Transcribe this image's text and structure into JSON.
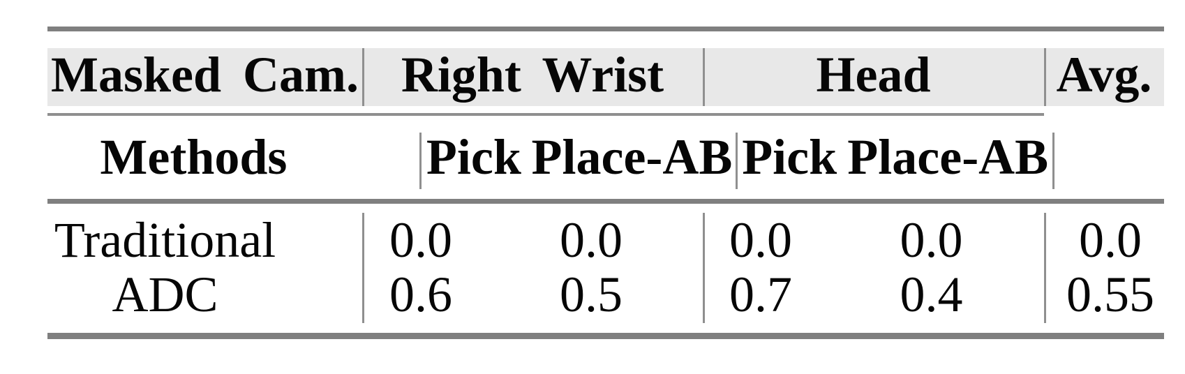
{
  "table": {
    "top_header": {
      "masked_cam": "Masked Cam.",
      "right_wrist": "Right Wrist",
      "head": "Head",
      "avg": "Avg."
    },
    "sub_header": {
      "methods": "Methods",
      "cols": [
        "Pick",
        "Place-AB",
        "Pick",
        "Place-AB"
      ]
    },
    "rows": [
      {
        "method": "Traditional",
        "values": [
          "0.0",
          "0.0",
          "0.0",
          "0.0",
          "0.0"
        ]
      },
      {
        "method": "ADC",
        "values": [
          "0.6",
          "0.5",
          "0.7",
          "0.4",
          "0.55"
        ]
      }
    ]
  },
  "colors": {
    "thick_rule": "#7f7f7f",
    "thin_rule": "#8f8f8f",
    "vertical_line": "#8f8f8f",
    "header_band_bg": "#e8e8e8",
    "text": "#060606",
    "background": "#ffffff"
  },
  "chart_data": {
    "type": "table",
    "title": "",
    "column_groups": [
      "Masked Cam.",
      "Right Wrist",
      "Right Wrist",
      "Head",
      "Head",
      "Avg."
    ],
    "columns": [
      "Methods",
      "Right Wrist Pick",
      "Right Wrist Place-AB",
      "Head Pick",
      "Head Place-AB",
      "Avg."
    ],
    "rows": [
      [
        "Traditional",
        0.0,
        0.0,
        0.0,
        0.0,
        0.0
      ],
      [
        "ADC",
        0.6,
        0.5,
        0.7,
        0.4,
        0.55
      ]
    ]
  }
}
